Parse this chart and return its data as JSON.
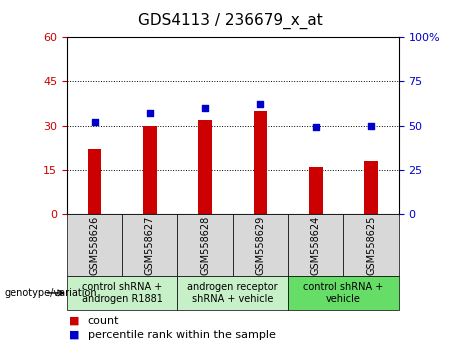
{
  "title": "GDS4113 / 236679_x_at",
  "samples": [
    "GSM558626",
    "GSM558627",
    "GSM558628",
    "GSM558629",
    "GSM558624",
    "GSM558625"
  ],
  "counts": [
    22,
    30,
    32,
    35,
    16,
    18
  ],
  "percentiles": [
    52,
    57,
    60,
    62,
    49,
    50
  ],
  "left_ylim": [
    0,
    60
  ],
  "right_ylim": [
    0,
    100
  ],
  "left_yticks": [
    0,
    15,
    30,
    45,
    60
  ],
  "right_yticks": [
    0,
    25,
    50,
    75,
    100
  ],
  "right_yticklabels": [
    "0",
    "25",
    "50",
    "75",
    "100%"
  ],
  "bar_color": "#cc0000",
  "dot_color": "#0000cc",
  "groups": [
    {
      "label": "control shRNA +\nandrogen R1881",
      "indices": [
        0,
        1
      ],
      "color": "#c8f0c8"
    },
    {
      "label": "androgen receptor\nshRNA + vehicle",
      "indices": [
        2,
        3
      ],
      "color": "#c8f0c8"
    },
    {
      "label": "control shRNA +\nvehicle",
      "indices": [
        4,
        5
      ],
      "color": "#66dd66"
    }
  ],
  "left_ylabel_color": "#cc0000",
  "right_ylabel_color": "#0000cc",
  "title_fontsize": 11,
  "tick_fontsize": 8,
  "legend_fontsize": 8,
  "sample_fontsize": 7,
  "group_label_fontsize": 7,
  "genotype_label": "genotype/variation"
}
